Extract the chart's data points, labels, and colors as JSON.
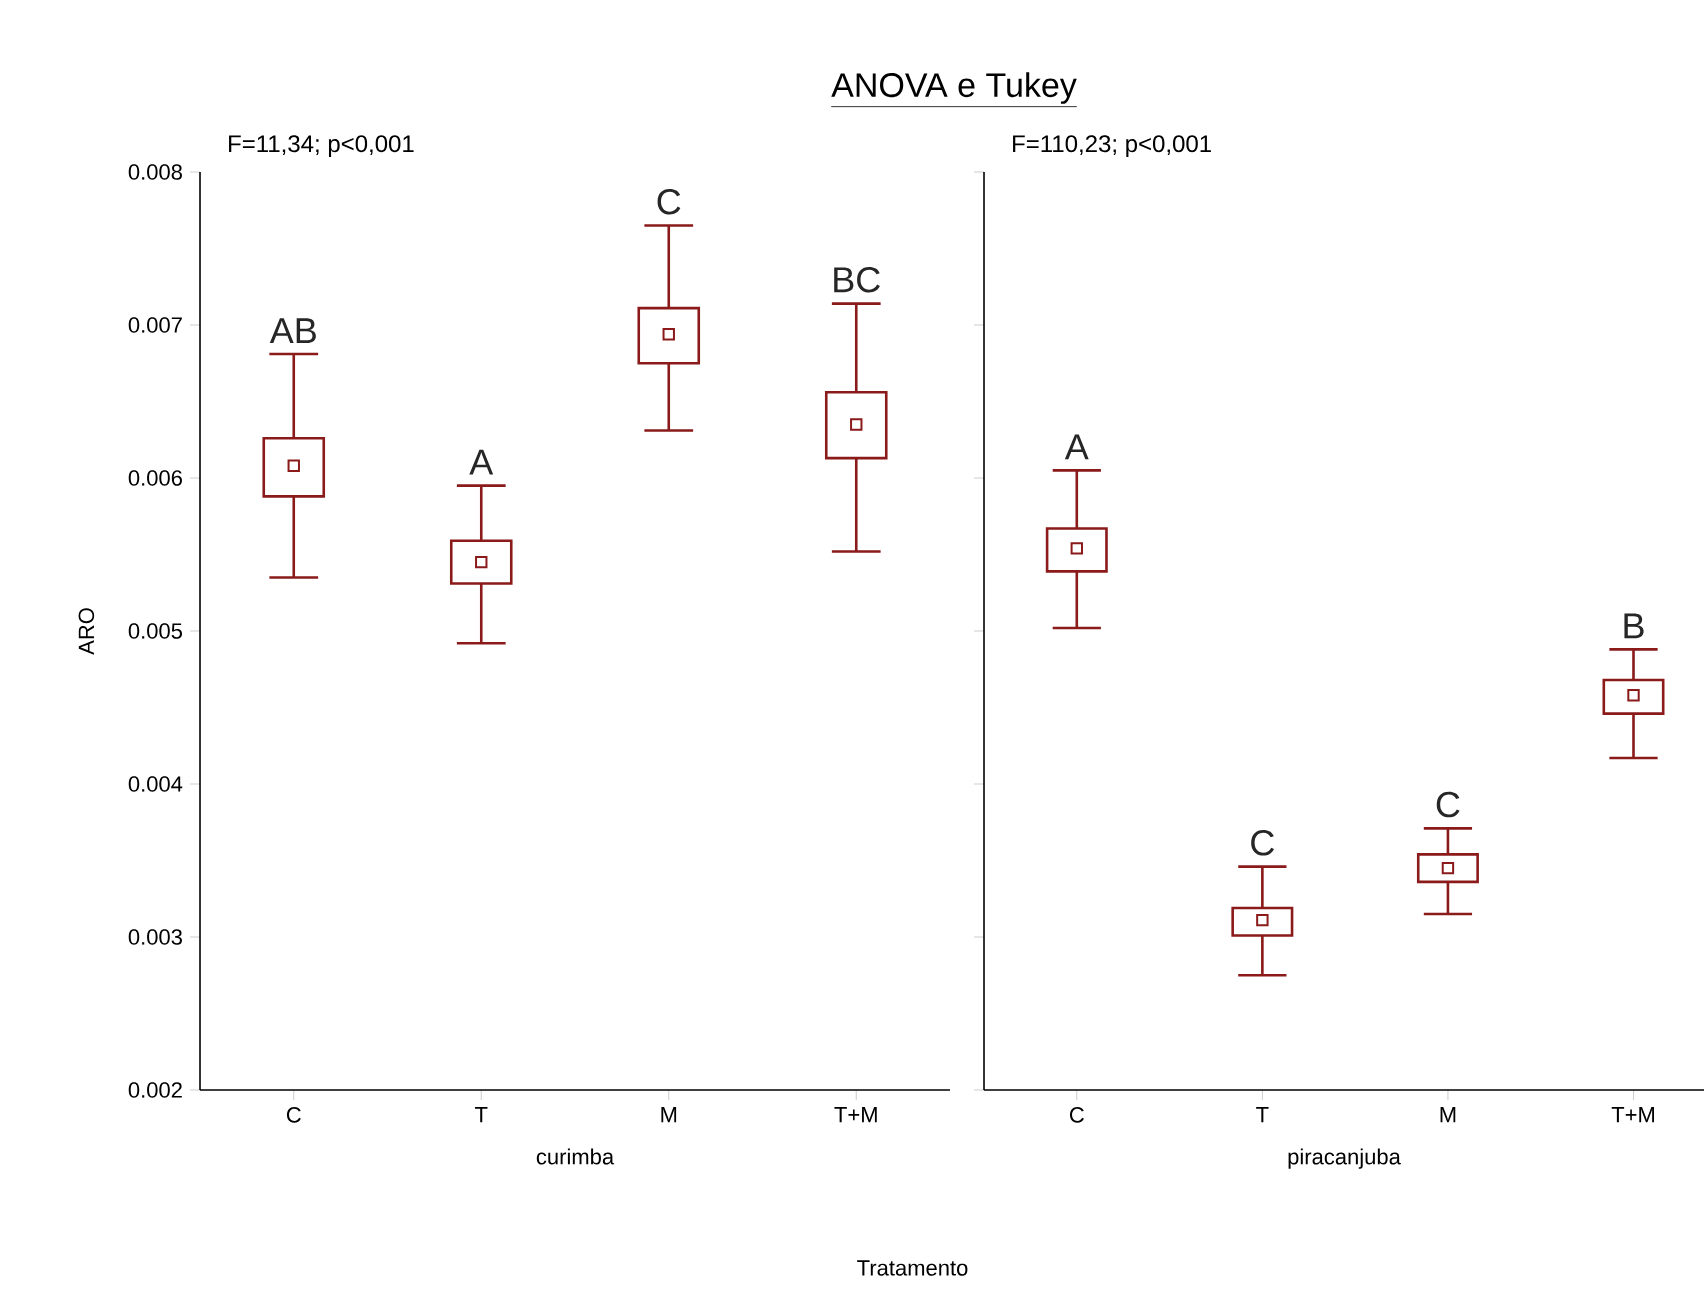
{
  "chart_data": [
    {
      "type": "box",
      "title": "ANOVA e Tukey",
      "xlabel": "curimba",
      "ylabel": "ARO",
      "categories": [
        "C",
        "T",
        "M",
        "T+M"
      ],
      "color": "#8b1a1a",
      "ylim": [
        0.002,
        0.008
      ],
      "yticks": [
        0.002,
        0.003,
        0.004,
        0.005,
        0.006,
        0.007,
        0.008
      ],
      "marker": "square",
      "boxes": [
        {
          "low": 0.00535,
          "q1": 0.00588,
          "median": 0.00608,
          "q3": 0.00626,
          "high": 0.00681
        },
        {
          "low": 0.00492,
          "q1": 0.00531,
          "median": 0.00545,
          "q3": 0.00559,
          "high": 0.00595
        },
        {
          "low": 0.00631,
          "q1": 0.00675,
          "median": 0.00694,
          "q3": 0.00711,
          "high": 0.00765
        },
        {
          "low": 0.00552,
          "q1": 0.00613,
          "median": 0.00635,
          "q3": 0.00656,
          "high": 0.00714
        }
      ],
      "annotations": [
        "F=11,34; p<0,001",
        "Tratamento",
        "AB",
        "A",
        "C",
        "BC"
      ]
    },
    {
      "type": "box",
      "xlabel": "piracanjuba",
      "categories": [
        "C",
        "T",
        "M",
        "T+M"
      ],
      "color": "#8b1a1a",
      "ylim": [
        0.002,
        0.008
      ],
      "yticks": [
        0.002,
        0.003,
        0.004,
        0.005,
        0.006,
        0.007,
        0.008
      ],
      "marker": "square",
      "tick_labels": "x",
      "boxes": [
        {
          "low": 0.00502,
          "q1": 0.00539,
          "median": 0.00554,
          "q3": 0.00567,
          "high": 0.00605
        },
        {
          "low": 0.00275,
          "q1": 0.00301,
          "median": 0.00311,
          "q3": 0.00319,
          "high": 0.00346
        },
        {
          "low": 0.00315,
          "q1": 0.00336,
          "median": 0.00345,
          "q3": 0.00354,
          "high": 0.00371
        },
        {
          "low": 0.00417,
          "q1": 0.00446,
          "median": 0.00458,
          "q3": 0.00468,
          "high": 0.00488
        }
      ],
      "annotations": [
        "F=110,23; p<0,001",
        "A",
        "C",
        "C",
        "B"
      ]
    }
  ]
}
